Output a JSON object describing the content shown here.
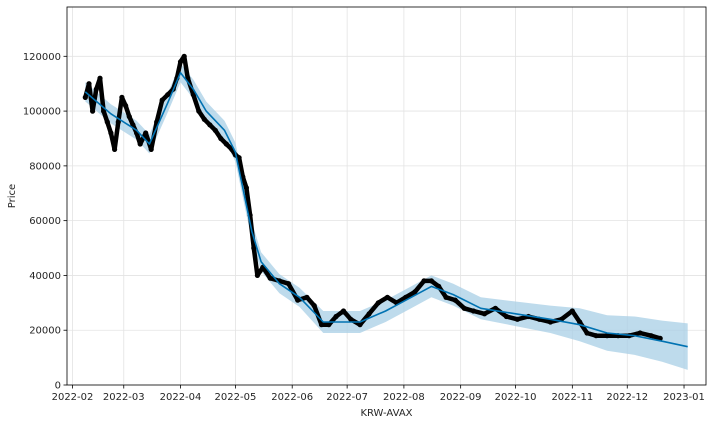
{
  "chart_data": {
    "type": "line",
    "xlabel": "KRW-AVAX",
    "ylabel": "Price",
    "grid": true,
    "legend": "none",
    "x_range": [
      "2022-01-29",
      "2023-01-13"
    ],
    "ylim": [
      0,
      138000
    ],
    "x_ticks": [
      "2022-02-01",
      "2022-03-01",
      "2022-04-01",
      "2022-05-01",
      "2022-06-01",
      "2022-07-01",
      "2022-08-01",
      "2022-09-01",
      "2022-10-01",
      "2022-11-01",
      "2022-12-01",
      "2023-01-01"
    ],
    "x_tick_labels": [
      "2022-02",
      "2022-03",
      "2022-04",
      "2022-05",
      "2022-06",
      "2022-07",
      "2022-08",
      "2022-09",
      "2022-10",
      "2022-11",
      "2022-12",
      "2023-01"
    ],
    "y_ticks": [
      0,
      20000,
      40000,
      60000,
      80000,
      100000,
      120000
    ],
    "y_tick_labels": [
      "0",
      "20000",
      "40000",
      "60000",
      "80000",
      "100000",
      "120000"
    ],
    "colors": {
      "forecast": "#0072b2",
      "interval": "#a8cfe6",
      "observed": "#000000",
      "grid": "#e3e3e3"
    },
    "series": [
      {
        "kind": "observed",
        "x": [
          "2022-02-08",
          "2022-02-10",
          "2022-02-12",
          "2022-02-14",
          "2022-02-16",
          "2022-02-18",
          "2022-02-20",
          "2022-02-22",
          "2022-02-24",
          "2022-02-26",
          "2022-02-28",
          "2022-03-02",
          "2022-03-04",
          "2022-03-06",
          "2022-03-08",
          "2022-03-10",
          "2022-03-13",
          "2022-03-16",
          "2022-03-19",
          "2022-03-22",
          "2022-03-25",
          "2022-03-28",
          "2022-03-30",
          "2022-04-01",
          "2022-04-03",
          "2022-04-05",
          "2022-04-08",
          "2022-04-11",
          "2022-04-14",
          "2022-04-17",
          "2022-04-20",
          "2022-04-23",
          "2022-04-26",
          "2022-04-29",
          "2022-05-01",
          "2022-05-03",
          "2022-05-05",
          "2022-05-07",
          "2022-05-09",
          "2022-05-11",
          "2022-05-13",
          "2022-05-16",
          "2022-05-20",
          "2022-05-25",
          "2022-05-30",
          "2022-06-04",
          "2022-06-09",
          "2022-06-13",
          "2022-06-17",
          "2022-06-21",
          "2022-06-25",
          "2022-06-29",
          "2022-07-03",
          "2022-07-08",
          "2022-07-13",
          "2022-07-18",
          "2022-07-23",
          "2022-07-28",
          "2022-08-02",
          "2022-08-07",
          "2022-08-12",
          "2022-08-16",
          "2022-08-20",
          "2022-08-24",
          "2022-08-29",
          "2022-09-03",
          "2022-09-08",
          "2022-09-14",
          "2022-09-20",
          "2022-09-26",
          "2022-10-02",
          "2022-10-08",
          "2022-10-14",
          "2022-10-20",
          "2022-10-26",
          "2022-11-01",
          "2022-11-05",
          "2022-11-09",
          "2022-11-14",
          "2022-11-20",
          "2022-11-26",
          "2022-12-02",
          "2022-12-08",
          "2022-12-14",
          "2022-12-19"
        ],
        "y": [
          105000,
          110000,
          100000,
          108000,
          112000,
          100000,
          96000,
          92000,
          86000,
          96000,
          105000,
          102000,
          98000,
          95000,
          92000,
          88000,
          92000,
          86000,
          96000,
          104000,
          106000,
          108000,
          112000,
          118000,
          120000,
          112000,
          106000,
          100000,
          97000,
          95000,
          93000,
          90000,
          88000,
          86000,
          84000,
          83000,
          76000,
          72000,
          62000,
          50000,
          40000,
          43000,
          39000,
          38000,
          37000,
          31000,
          32000,
          29000,
          22000,
          22000,
          25000,
          27000,
          24000,
          22000,
          26000,
          30000,
          32000,
          30000,
          32000,
          34000,
          38000,
          38000,
          36000,
          32000,
          31000,
          28000,
          27000,
          26000,
          28000,
          25000,
          24000,
          25000,
          24000,
          23000,
          24000,
          27000,
          23000,
          19000,
          18000,
          18000,
          18000,
          18000,
          19000,
          18000,
          17000
        ]
      },
      {
        "kind": "forecast",
        "x": [
          "2022-02-08",
          "2022-02-22",
          "2022-03-08",
          "2022-03-15",
          "2022-03-25",
          "2022-04-01",
          "2022-04-08",
          "2022-04-15",
          "2022-04-25",
          "2022-05-01",
          "2022-05-05",
          "2022-05-10",
          "2022-05-15",
          "2022-05-25",
          "2022-06-05",
          "2022-06-18",
          "2022-06-28",
          "2022-07-08",
          "2022-07-22",
          "2022-08-05",
          "2022-08-16",
          "2022-08-28",
          "2022-09-12",
          "2022-10-01",
          "2022-10-20",
          "2022-11-05",
          "2022-11-20",
          "2022-12-05",
          "2022-12-20",
          "2023-01-03"
        ],
        "y": [
          107000,
          99000,
          93000,
          88000,
          103000,
          114000,
          108000,
          100000,
          93000,
          85000,
          72000,
          56000,
          45000,
          37000,
          32000,
          23000,
          23000,
          23000,
          27000,
          32000,
          36000,
          33000,
          28000,
          26000,
          24000,
          22000,
          19000,
          18000,
          16000,
          14000
        ]
      },
      {
        "kind": "interval",
        "x": [
          "2022-02-08",
          "2022-02-22",
          "2022-03-08",
          "2022-03-15",
          "2022-03-25",
          "2022-04-01",
          "2022-04-08",
          "2022-04-15",
          "2022-04-25",
          "2022-05-01",
          "2022-05-05",
          "2022-05-10",
          "2022-05-15",
          "2022-05-25",
          "2022-06-05",
          "2022-06-18",
          "2022-06-28",
          "2022-07-08",
          "2022-07-22",
          "2022-08-05",
          "2022-08-16",
          "2022-08-28",
          "2022-09-12",
          "2022-10-01",
          "2022-10-20",
          "2022-11-05",
          "2022-11-20",
          "2022-12-05",
          "2022-12-20",
          "2023-01-03"
        ],
        "lower": [
          103500,
          95500,
          89500,
          84500,
          99500,
          110500,
          104500,
          96500,
          89500,
          81500,
          68500,
          52500,
          41500,
          33500,
          28500,
          19000,
          19000,
          19000,
          23000,
          28000,
          32000,
          29000,
          24000,
          21500,
          19000,
          16000,
          12500,
          11000,
          8500,
          5500
        ],
        "upper": [
          110500,
          102500,
          96500,
          91500,
          106500,
          117500,
          111500,
          103500,
          96500,
          88500,
          75500,
          59500,
          48500,
          40500,
          35500,
          27000,
          27000,
          27000,
          31000,
          36000,
          40000,
          37000,
          32000,
          30500,
          29000,
          28000,
          25500,
          25000,
          23500,
          22500
        ]
      }
    ]
  }
}
